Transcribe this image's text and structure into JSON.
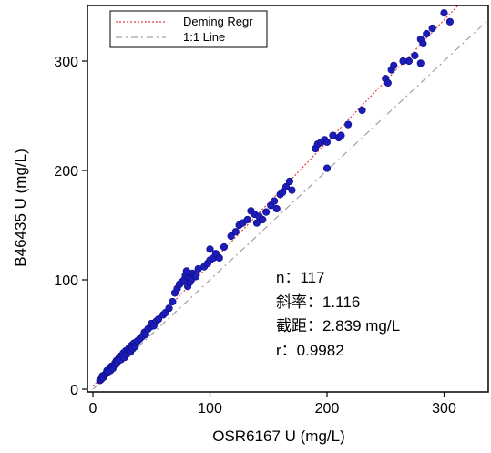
{
  "chart_data": {
    "type": "scatter",
    "title": "",
    "xlabel": "OSR6167 U (mg/L)",
    "ylabel": "B46435 U (mg/L)",
    "xlim": [
      0,
      350
    ],
    "ylim": [
      0,
      350
    ],
    "x_ticks": [
      0,
      100,
      200,
      300
    ],
    "y_ticks": [
      0,
      100,
      200,
      300
    ],
    "grid": false,
    "legend_position": "top-left",
    "legend": [
      {
        "name": "Deming Regr",
        "color": "#e04040",
        "style": "dotted"
      },
      {
        "name": "1:1 Line",
        "color": "#a0a0a0",
        "style": "dash-dot"
      }
    ],
    "regression": {
      "slope": 1.116,
      "intercept": 2.839
    },
    "point_color": "#1c1cb8",
    "points": [
      [
        6,
        8
      ],
      [
        7,
        9
      ],
      [
        8,
        10
      ],
      [
        8,
        12
      ],
      [
        9,
        11
      ],
      [
        10,
        13
      ],
      [
        11,
        14
      ],
      [
        12,
        15
      ],
      [
        12,
        17
      ],
      [
        13,
        16
      ],
      [
        14,
        18
      ],
      [
        15,
        20
      ],
      [
        15,
        17
      ],
      [
        16,
        21
      ],
      [
        17,
        19
      ],
      [
        18,
        22
      ],
      [
        19,
        24
      ],
      [
        20,
        23
      ],
      [
        20,
        26
      ],
      [
        21,
        25
      ],
      [
        22,
        28
      ],
      [
        23,
        30
      ],
      [
        24,
        27
      ],
      [
        25,
        31
      ],
      [
        26,
        33
      ],
      [
        27,
        29
      ],
      [
        28,
        35
      ],
      [
        29,
        32
      ],
      [
        30,
        36
      ],
      [
        31,
        38
      ],
      [
        32,
        34
      ],
      [
        33,
        40
      ],
      [
        34,
        37
      ],
      [
        35,
        42
      ],
      [
        36,
        39
      ],
      [
        38,
        44
      ],
      [
        40,
        46
      ],
      [
        42,
        48
      ],
      [
        44,
        52
      ],
      [
        45,
        50
      ],
      [
        47,
        55
      ],
      [
        49,
        57
      ],
      [
        50,
        60
      ],
      [
        52,
        58
      ],
      [
        54,
        62
      ],
      [
        56,
        64
      ],
      [
        60,
        68
      ],
      [
        62,
        70
      ],
      [
        65,
        74
      ],
      [
        68,
        80
      ],
      [
        70,
        88
      ],
      [
        72,
        92
      ],
      [
        74,
        96
      ],
      [
        76,
        98
      ],
      [
        78,
        100
      ],
      [
        79,
        104
      ],
      [
        80,
        108
      ],
      [
        81,
        94
      ],
      [
        82,
        102
      ],
      [
        83,
        98
      ],
      [
        84,
        100
      ],
      [
        85,
        106
      ],
      [
        87,
        104
      ],
      [
        88,
        103
      ],
      [
        90,
        110
      ],
      [
        95,
        112
      ],
      [
        98,
        115
      ],
      [
        100,
        118
      ],
      [
        100,
        128
      ],
      [
        103,
        120
      ],
      [
        105,
        124
      ],
      [
        108,
        120
      ],
      [
        112,
        130
      ],
      [
        118,
        140
      ],
      [
        122,
        144
      ],
      [
        125,
        150
      ],
      [
        128,
        152
      ],
      [
        132,
        155
      ],
      [
        135,
        163
      ],
      [
        138,
        160
      ],
      [
        140,
        152
      ],
      [
        142,
        158
      ],
      [
        145,
        155
      ],
      [
        148,
        162
      ],
      [
        152,
        168
      ],
      [
        155,
        172
      ],
      [
        157,
        165
      ],
      [
        160,
        178
      ],
      [
        162,
        180
      ],
      [
        165,
        185
      ],
      [
        168,
        190
      ],
      [
        170,
        182
      ],
      [
        190,
        220
      ],
      [
        192,
        224
      ],
      [
        195,
        226
      ],
      [
        198,
        228
      ],
      [
        200,
        226
      ],
      [
        200,
        202
      ],
      [
        205,
        232
      ],
      [
        210,
        230
      ],
      [
        212,
        232
      ],
      [
        218,
        242
      ],
      [
        250,
        284
      ],
      [
        252,
        280
      ],
      [
        255,
        292
      ],
      [
        257,
        296
      ],
      [
        270,
        300
      ],
      [
        275,
        305
      ],
      [
        280,
        320
      ],
      [
        280,
        298
      ],
      [
        282,
        316
      ],
      [
        290,
        330
      ],
      [
        300,
        344
      ],
      [
        305,
        336
      ],
      [
        285,
        325
      ],
      [
        265,
        300
      ],
      [
        230,
        255
      ]
    ],
    "n_label": "n：117",
    "slope_label": "斜率：1.116",
    "intercept_label": "截距：2.839 mg/L",
    "r_label": "r：0.9982"
  }
}
